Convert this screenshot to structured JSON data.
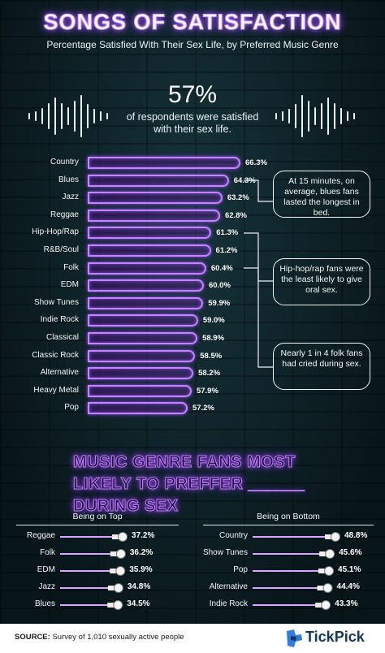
{
  "title": "SONGS OF SATISFACTION",
  "subtitle": "Percentage Satisfied With Their Sex Life, by Preferred Music Genre",
  "headline_stat": "57%",
  "headline_text": "of respondents were satisfied with their sex life.",
  "chart_data": [
    {
      "type": "bar",
      "orientation": "horizontal",
      "categories": [
        "Country",
        "Blues",
        "Jazz",
        "Reggae",
        "Hip-Hop/Rap",
        "R&B/Soul",
        "Folk",
        "EDM",
        "Show Tunes",
        "Indie Rock",
        "Classical",
        "Classic Rock",
        "Alternative",
        "Heavy Metal",
        "Pop"
      ],
      "values": [
        66.3,
        64.3,
        63.2,
        62.8,
        61.3,
        61.2,
        60.4,
        60.0,
        59.9,
        59.0,
        58.9,
        58.5,
        58.2,
        57.9,
        57.2
      ],
      "value_labels": [
        "66.3%",
        "64.3%",
        "63.2%",
        "62.8%",
        "61.3%",
        "61.2%",
        "60.4%",
        "60.0%",
        "59.9%",
        "59.0%",
        "58.9%",
        "58.5%",
        "58.2%",
        "57.9%",
        "57.2%"
      ],
      "annotations": [
        "At 15 minutes, on average, blues fans lasted the longest in bed.",
        "Hip-hop/rap fans were the least likely to give oral sex.",
        "Nearly 1 in 4 folk fans had cried during sex."
      ]
    },
    {
      "type": "bar",
      "title": "MUSIC GENRE FANS MOST LIKELY TO PREFFER ______ DURING SEX",
      "panels": [
        {
          "name": "Being on Top",
          "categories": [
            "Reggae",
            "Folk",
            "EDM",
            "Jazz",
            "Blues"
          ],
          "values": [
            37.2,
            36.2,
            35.9,
            34.8,
            34.5
          ],
          "value_labels": [
            "37.2%",
            "36.2%",
            "35.9%",
            "34.8%",
            "34.5%"
          ]
        },
        {
          "name": "Being on Bottom",
          "categories": [
            "Country",
            "Show Tunes",
            "Pop",
            "Alternative",
            "Indie Rock"
          ],
          "values": [
            48.8,
            45.6,
            45.1,
            44.4,
            43.3
          ],
          "value_labels": [
            "48.8%",
            "45.6%",
            "45.1%",
            "44.4%",
            "43.3%"
          ]
        }
      ]
    }
  ],
  "colors": {
    "neon": "#c683ff",
    "background": "#12292f",
    "brand": "#16365c"
  },
  "footer": {
    "source_label": "SOURCE:",
    "source_text": "Survey of 1,010 sexually active people",
    "brand": "TickPick"
  }
}
